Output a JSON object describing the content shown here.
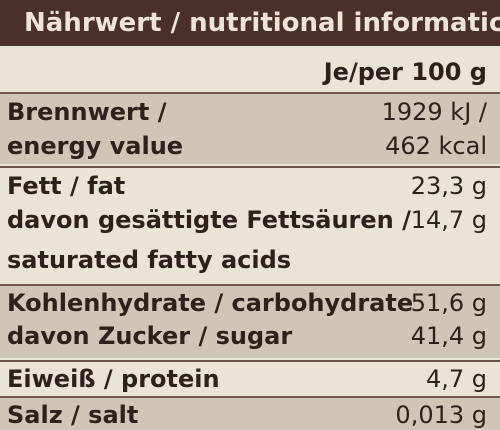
{
  "header": {
    "title": "Nährwert / nutritional information"
  },
  "per_heading": "Je/per 100 g",
  "rows": [
    {
      "name_line1": "Brennwert /",
      "name_line2": "energy value",
      "value_line1": "1929 kJ /",
      "value_line2": "462 kcal"
    },
    {
      "name_line1": "Fett / fat",
      "value_line1": "23,3 g"
    },
    {
      "name_line1": "davon gesättigte Fettsäuren /",
      "name_line2": "saturated fatty acids",
      "value_line1": "14,7 g"
    },
    {
      "name_line1": "Kohlenhydrate / carbohydrate",
      "value_line1": "51,6 g"
    },
    {
      "name_line1": "davon Zucker / sugar",
      "value_line1": "41,4 g"
    },
    {
      "name_line1": "Eiweiß / protein",
      "value_line1": "4,7 g"
    },
    {
      "name_line1": "Salz / salt",
      "value_line1": "0,013 g"
    }
  ],
  "colors": {
    "header_bg": "#4a3028",
    "header_text": "#ece5d8",
    "shaded_row": "#cfc6b8",
    "light_row": "#e9e4d6",
    "text": "#2e211d"
  }
}
